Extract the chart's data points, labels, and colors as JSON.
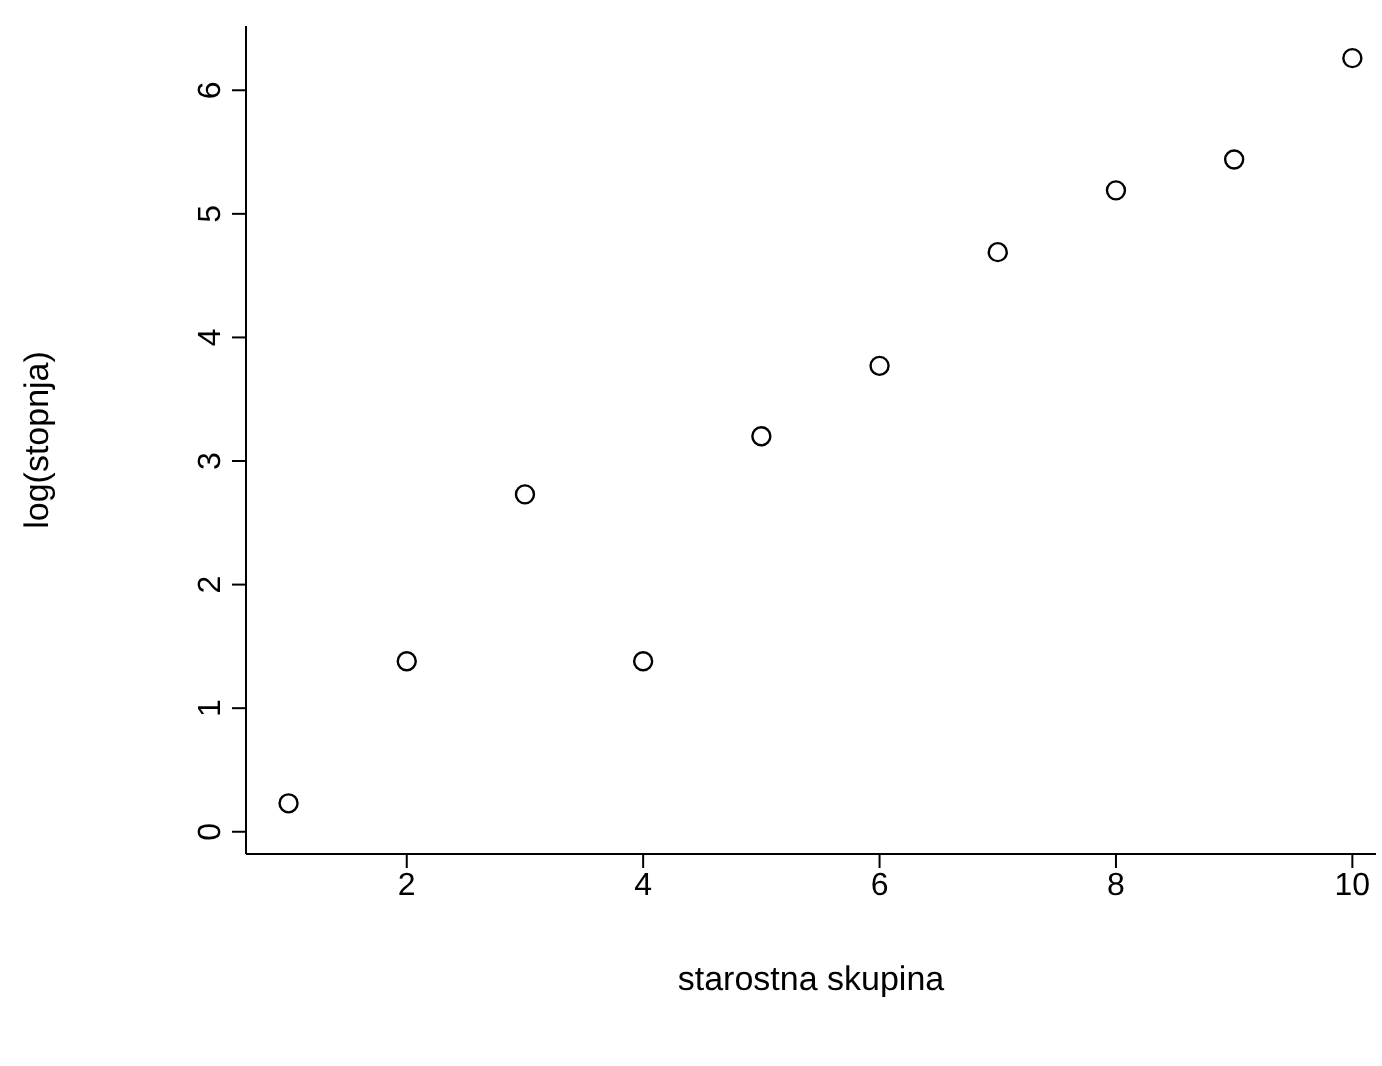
{
  "chart_data": {
    "type": "scatter",
    "xlabel": "starostna skupina",
    "ylabel": "log(stopnja)",
    "x": [
      1,
      2,
      3,
      4,
      5,
      6,
      7,
      8,
      9,
      10
    ],
    "values": [
      0.23,
      1.38,
      2.73,
      1.38,
      3.2,
      3.77,
      4.69,
      5.19,
      5.44,
      6.26
    ],
    "color": "#000000",
    "marker": "circle",
    "xlim": [
      0.64,
      10.2
    ],
    "xticks": [
      2,
      4,
      6,
      8,
      10
    ],
    "ylim": [
      -0.18,
      6.52
    ],
    "yticks": [
      0,
      1,
      2,
      3,
      4,
      5,
      6
    ],
    "grid": false,
    "legend": false
  }
}
